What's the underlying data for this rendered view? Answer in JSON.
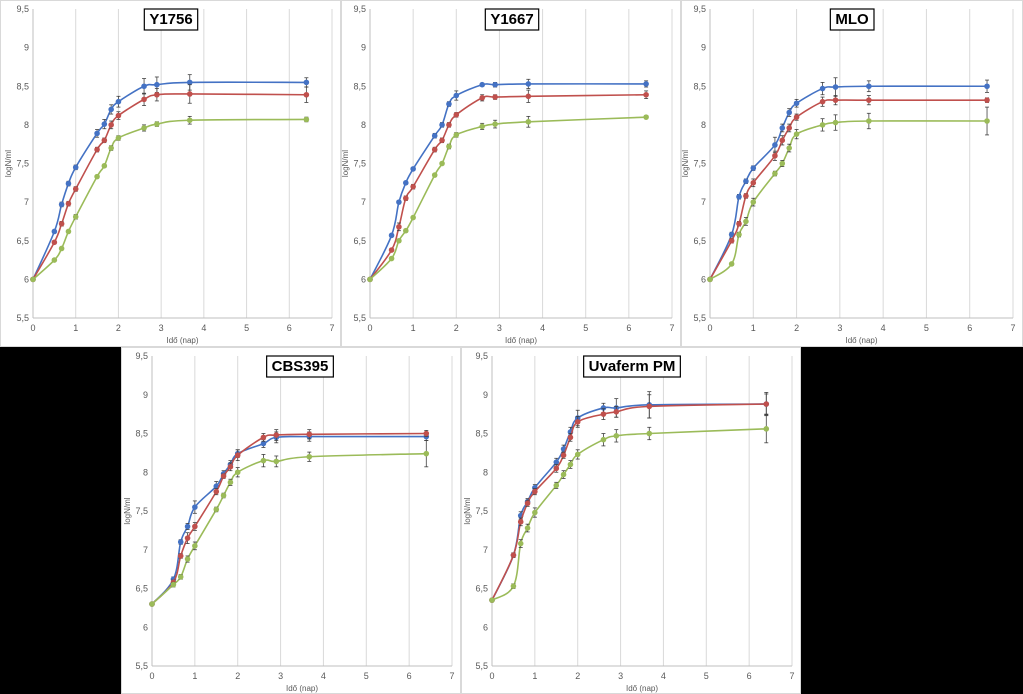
{
  "colors": {
    "blue": "#4472C4",
    "red": "#C0504D",
    "green": "#9BBB59",
    "grid": "#D9D9D9",
    "errorbar": "#404040"
  },
  "chart_data": [
    {
      "type": "line",
      "title": "Y1756",
      "xlabel": "Idő (nap)",
      "ylabel": "logN/ml",
      "xlim": [
        0,
        7
      ],
      "ylim": [
        5.5,
        9.5
      ],
      "xticks": [
        "0",
        "1",
        "2",
        "3",
        "4",
        "5",
        "6",
        "7"
      ],
      "yticks": [
        "5,5",
        "6",
        "6,5",
        "7",
        "7,5",
        "8",
        "8,5",
        "9",
        "9,5"
      ],
      "grid": "vertical",
      "series": [
        {
          "color": "blue",
          "x": [
            0,
            0.5,
            0.67,
            0.83,
            1.0,
            1.5,
            1.67,
            1.83,
            2.0,
            2.6,
            2.9,
            3.67,
            6.4
          ],
          "y": [
            6.0,
            6.62,
            6.97,
            7.24,
            7.45,
            7.89,
            8.01,
            8.2,
            8.3,
            8.5,
            8.52,
            8.55,
            8.55
          ],
          "err": [
            0,
            0.02,
            0.03,
            0.03,
            0.03,
            0.05,
            0.06,
            0.06,
            0.07,
            0.1,
            0.1,
            0.1,
            0.06
          ]
        },
        {
          "color": "red",
          "x": [
            0,
            0.5,
            0.67,
            0.83,
            1.0,
            1.5,
            1.67,
            1.83,
            2.0,
            2.6,
            2.9,
            3.67,
            6.4
          ],
          "y": [
            6.0,
            6.48,
            6.72,
            6.98,
            7.17,
            7.68,
            7.8,
            8.0,
            8.12,
            8.33,
            8.39,
            8.4,
            8.39
          ],
          "err": [
            0,
            0.02,
            0.03,
            0.03,
            0.03,
            0.03,
            0.03,
            0.05,
            0.05,
            0.08,
            0.08,
            0.12,
            0.1
          ]
        },
        {
          "color": "green",
          "x": [
            0,
            0.5,
            0.67,
            0.83,
            1.0,
            1.5,
            1.67,
            1.83,
            2.0,
            2.6,
            2.9,
            3.67,
            6.4
          ],
          "y": [
            6.0,
            6.25,
            6.4,
            6.62,
            6.81,
            7.33,
            7.47,
            7.7,
            7.83,
            7.96,
            8.01,
            8.06,
            8.07
          ],
          "err": [
            0,
            0.02,
            0.02,
            0.02,
            0.03,
            0.02,
            0.02,
            0.03,
            0.03,
            0.04,
            0.03,
            0.05,
            0.03
          ]
        }
      ]
    },
    {
      "type": "line",
      "title": "Y1667",
      "xlabel": "Idő (nap)",
      "ylabel": "logN/ml",
      "xlim": [
        0,
        7
      ],
      "ylim": [
        5.5,
        9.5
      ],
      "xticks": [
        "0",
        "1",
        "2",
        "3",
        "4",
        "5",
        "6",
        "7"
      ],
      "yticks": [
        "5,5",
        "6",
        "6,5",
        "7",
        "7,5",
        "8",
        "8,5",
        "9",
        "9,5"
      ],
      "grid": "vertical",
      "series": [
        {
          "color": "blue",
          "x": [
            0,
            0.5,
            0.67,
            0.83,
            1.0,
            1.5,
            1.67,
            1.83,
            2.0,
            2.6,
            2.9,
            3.67,
            6.4
          ],
          "y": [
            6.0,
            6.57,
            7.0,
            7.25,
            7.43,
            7.86,
            8.0,
            8.27,
            8.38,
            8.52,
            8.52,
            8.53,
            8.53
          ],
          "err": [
            0,
            0.02,
            0.02,
            0.02,
            0.02,
            0.03,
            0.03,
            0.03,
            0.06,
            0.02,
            0.03,
            0.06,
            0.04
          ]
        },
        {
          "color": "red",
          "x": [
            0,
            0.5,
            0.67,
            0.83,
            1.0,
            1.5,
            1.67,
            1.83,
            2.0,
            2.6,
            2.9,
            3.67,
            6.4
          ],
          "y": [
            6.0,
            6.38,
            6.68,
            7.05,
            7.2,
            7.68,
            7.8,
            8.0,
            8.13,
            8.35,
            8.36,
            8.37,
            8.39
          ],
          "err": [
            0,
            0.02,
            0.05,
            0.03,
            0.03,
            0.03,
            0.03,
            0.03,
            0.03,
            0.04,
            0.03,
            0.08,
            0.05
          ]
        },
        {
          "color": "green",
          "x": [
            0,
            0.5,
            0.67,
            0.83,
            1.0,
            1.5,
            1.67,
            1.83,
            2.0,
            2.6,
            2.9,
            3.67,
            6.4
          ],
          "y": [
            6.0,
            6.27,
            6.5,
            6.63,
            6.8,
            7.35,
            7.5,
            7.72,
            7.87,
            7.98,
            8.01,
            8.04,
            8.1
          ],
          "err": [
            0,
            0.02,
            0.02,
            0.02,
            0.02,
            0.02,
            0.02,
            0.03,
            0.03,
            0.04,
            0.05,
            0.07,
            0.02
          ]
        }
      ]
    },
    {
      "type": "line",
      "title": "MLO",
      "xlabel": "Idő (nap)",
      "ylabel": "logN/ml",
      "xlim": [
        0,
        7
      ],
      "ylim": [
        5.5,
        9.5
      ],
      "xticks": [
        "0",
        "1",
        "2",
        "3",
        "4",
        "5",
        "6",
        "7"
      ],
      "yticks": [
        "5,5",
        "6",
        "6,5",
        "7",
        "7,5",
        "8",
        "8,5",
        "9",
        "9,5"
      ],
      "grid": "vertical",
      "series": [
        {
          "color": "blue",
          "x": [
            0,
            0.5,
            0.67,
            0.83,
            1.0,
            1.5,
            1.67,
            1.83,
            2.0,
            2.6,
            2.9,
            3.67,
            6.4
          ],
          "y": [
            6.0,
            6.58,
            7.07,
            7.27,
            7.44,
            7.74,
            7.96,
            8.16,
            8.28,
            8.47,
            8.49,
            8.5,
            8.5
          ],
          "err": [
            0,
            0.03,
            0.03,
            0.03,
            0.03,
            0.1,
            0.05,
            0.05,
            0.05,
            0.08,
            0.12,
            0.07,
            0.08
          ]
        },
        {
          "color": "red",
          "x": [
            0,
            0.5,
            0.67,
            0.83,
            1.0,
            1.5,
            1.67,
            1.83,
            2.0,
            2.6,
            2.9,
            3.67,
            6.4
          ],
          "y": [
            6.0,
            6.5,
            6.72,
            7.08,
            7.25,
            7.6,
            7.8,
            7.96,
            8.1,
            8.3,
            8.32,
            8.32,
            8.32
          ],
          "err": [
            0,
            0.03,
            0.03,
            0.03,
            0.05,
            0.06,
            0.06,
            0.05,
            0.04,
            0.06,
            0.06,
            0.06,
            0.03
          ]
        },
        {
          "color": "green",
          "x": [
            0,
            0.5,
            0.67,
            0.83,
            1.0,
            1.5,
            1.67,
            1.83,
            2.0,
            2.6,
            2.9,
            3.67,
            6.4
          ],
          "y": [
            6.0,
            6.2,
            6.58,
            6.75,
            7.0,
            7.37,
            7.5,
            7.7,
            7.88,
            8.0,
            8.03,
            8.05,
            8.05
          ],
          "err": [
            0,
            0.02,
            0.03,
            0.05,
            0.05,
            0.03,
            0.04,
            0.05,
            0.06,
            0.08,
            0.1,
            0.1,
            0.18
          ]
        }
      ]
    },
    {
      "type": "line",
      "title": "CBS395",
      "xlabel": "Idő (nap)",
      "ylabel": "logN/ml",
      "xlim": [
        0,
        7
      ],
      "ylim": [
        5.5,
        9.5
      ],
      "xticks": [
        "0",
        "1",
        "2",
        "3",
        "4",
        "5",
        "6",
        "7"
      ],
      "yticks": [
        "5,5",
        "6",
        "6,5",
        "7",
        "7,5",
        "8",
        "8,5",
        "9",
        "9,5"
      ],
      "grid": "vertical",
      "series": [
        {
          "color": "blue",
          "x": [
            0,
            0.5,
            0.67,
            0.83,
            1.0,
            1.5,
            1.67,
            1.83,
            2.0,
            2.6,
            2.9,
            3.67,
            6.4
          ],
          "y": [
            6.3,
            6.62,
            7.1,
            7.3,
            7.55,
            7.82,
            7.98,
            8.1,
            8.24,
            8.37,
            8.45,
            8.46,
            8.46
          ],
          "err": [
            0,
            0.03,
            0.03,
            0.04,
            0.08,
            0.06,
            0.04,
            0.05,
            0.05,
            0.05,
            0.07,
            0.06,
            0.05
          ]
        },
        {
          "color": "red",
          "x": [
            0,
            0.5,
            0.67,
            0.83,
            1.0,
            1.5,
            1.67,
            1.83,
            2.0,
            2.6,
            2.9,
            3.67,
            6.4
          ],
          "y": [
            6.3,
            6.58,
            6.92,
            7.15,
            7.3,
            7.75,
            7.95,
            8.07,
            8.22,
            8.45,
            8.48,
            8.49,
            8.5
          ],
          "err": [
            0,
            0.03,
            0.03,
            0.07,
            0.05,
            0.04,
            0.03,
            0.05,
            0.07,
            0.05,
            0.07,
            0.06,
            0.04
          ]
        },
        {
          "color": "green",
          "x": [
            0,
            0.5,
            0.67,
            0.83,
            1.0,
            1.5,
            1.67,
            1.83,
            2.0,
            2.6,
            2.9,
            3.67,
            6.4
          ],
          "y": [
            6.3,
            6.55,
            6.65,
            6.88,
            7.05,
            7.52,
            7.7,
            7.87,
            8.0,
            8.15,
            8.14,
            8.2,
            8.24
          ],
          "err": [
            0,
            0.03,
            0.03,
            0.04,
            0.05,
            0.03,
            0.03,
            0.04,
            0.06,
            0.08,
            0.07,
            0.06,
            0.17
          ]
        }
      ]
    },
    {
      "type": "line",
      "title": "Uvaferm PM",
      "xlabel": "Idő (nap)",
      "ylabel": "logN/ml",
      "xlim": [
        0,
        7
      ],
      "ylim": [
        5.5,
        9.5
      ],
      "xticks": [
        "0",
        "1",
        "2",
        "3",
        "4",
        "5",
        "6",
        "7"
      ],
      "yticks": [
        "5,5",
        "6",
        "6,5",
        "7",
        "7,5",
        "8",
        "8,5",
        "9",
        "9,5"
      ],
      "grid": "vertical",
      "series": [
        {
          "color": "blue",
          "x": [
            0,
            0.5,
            0.67,
            0.83,
            1.0,
            1.5,
            1.67,
            1.83,
            2.0,
            2.6,
            2.9,
            3.67,
            6.4
          ],
          "y": [
            6.35,
            6.93,
            7.44,
            7.62,
            7.8,
            8.13,
            8.3,
            8.52,
            8.7,
            8.83,
            8.83,
            8.87,
            8.88
          ],
          "err": [
            0,
            0.03,
            0.05,
            0.04,
            0.04,
            0.05,
            0.05,
            0.06,
            0.1,
            0.06,
            0.12,
            0.17,
            0.13
          ]
        },
        {
          "color": "red",
          "x": [
            0,
            0.5,
            0.67,
            0.83,
            1.0,
            1.5,
            1.67,
            1.83,
            2.0,
            2.6,
            2.9,
            3.67,
            6.4
          ],
          "y": [
            6.35,
            6.93,
            7.36,
            7.6,
            7.75,
            8.05,
            8.22,
            8.45,
            8.65,
            8.75,
            8.78,
            8.85,
            8.88
          ],
          "err": [
            0,
            0.03,
            0.05,
            0.04,
            0.04,
            0.05,
            0.04,
            0.05,
            0.07,
            0.07,
            0.07,
            0.15,
            0.15
          ]
        },
        {
          "color": "green",
          "x": [
            0,
            0.5,
            0.67,
            0.83,
            1.0,
            1.5,
            1.67,
            1.83,
            2.0,
            2.6,
            2.9,
            3.67,
            6.4
          ],
          "y": [
            6.35,
            6.53,
            7.08,
            7.28,
            7.48,
            7.83,
            7.97,
            8.1,
            8.23,
            8.42,
            8.47,
            8.5,
            8.56
          ],
          "err": [
            0,
            0.03,
            0.05,
            0.05,
            0.06,
            0.04,
            0.05,
            0.05,
            0.06,
            0.08,
            0.08,
            0.08,
            0.18
          ]
        }
      ]
    }
  ]
}
